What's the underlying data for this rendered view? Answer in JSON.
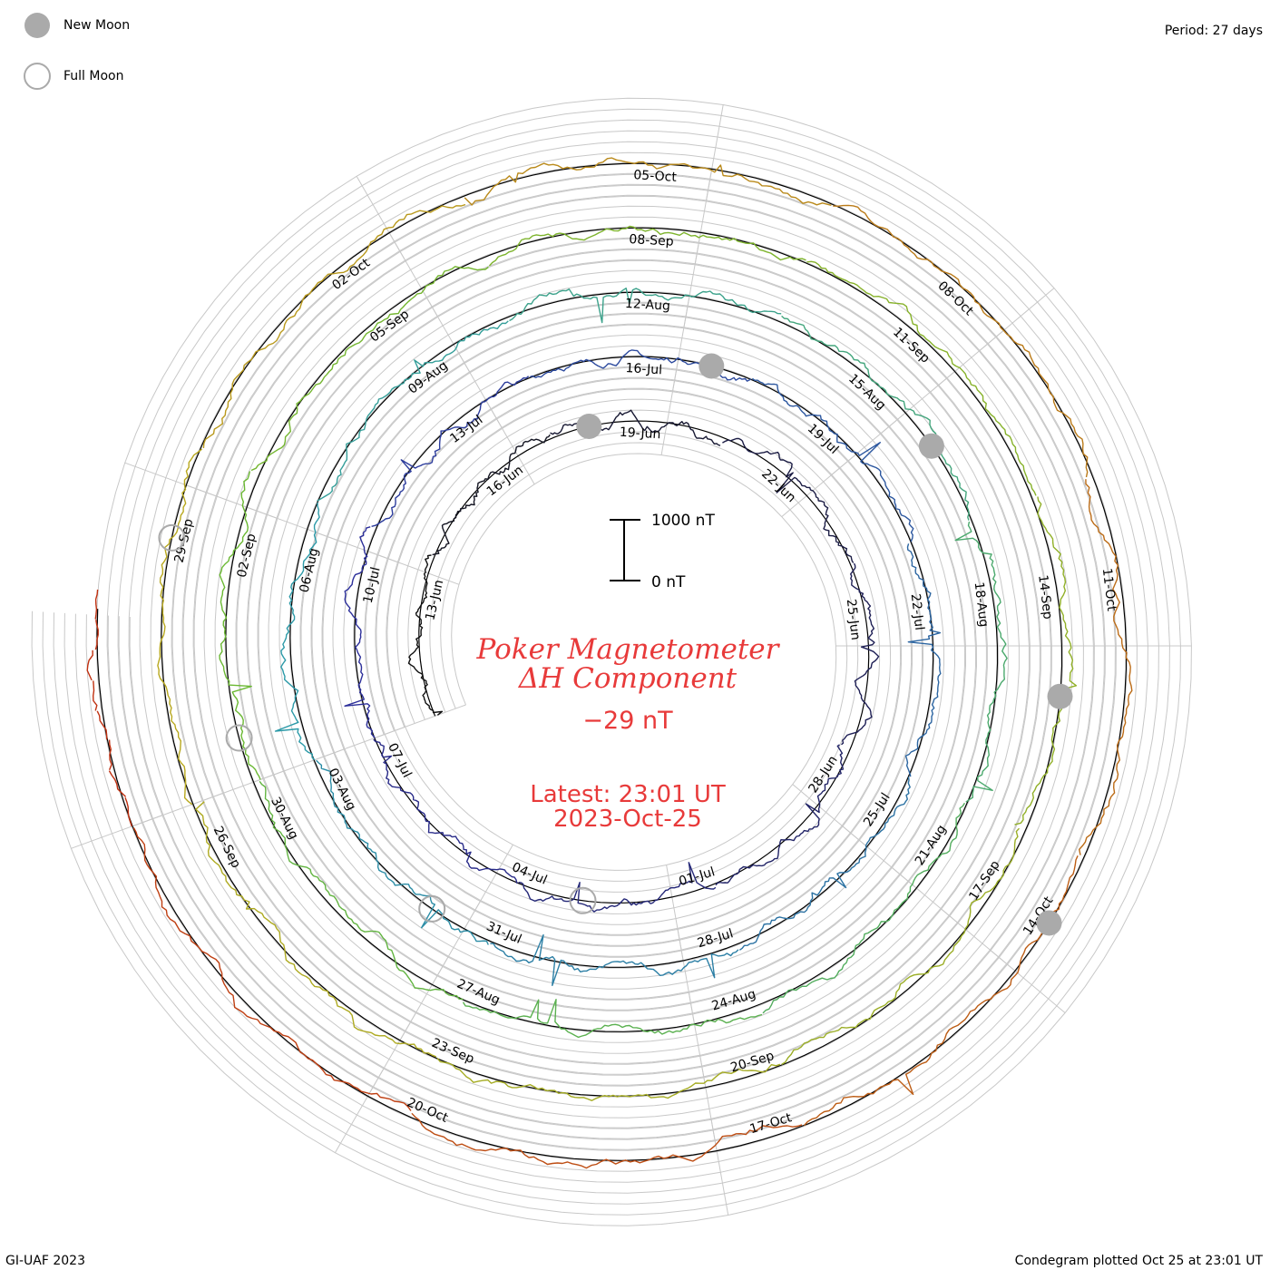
{
  "legend": {
    "new_moon": "New Moon",
    "full_moon": "Full Moon"
  },
  "period_label": "Period: 27 days",
  "footer_left": "GI-UAF 2023",
  "footer_right": "Condegram plotted Oct 25 at 23:01 UT",
  "title_line1": "Poker Magnetometer",
  "title_line2": "ΔH Component",
  "current_value": "−29 nT",
  "latest_time": "Latest: 23:01 UT",
  "latest_date": "2023-Oct-25",
  "scale": {
    "top_label": "1000 nT",
    "bottom_label": "0 nT"
  },
  "colors": {
    "new_moon": "#aaaaaa",
    "full_moon": "#aaaaaa",
    "title": "#e83a3a",
    "grid": "#c8c8c8",
    "baseline": "#000000"
  },
  "chart_data": {
    "type": "line",
    "projection": "spiral condegram (27-day period per revolution)",
    "period_days": 27,
    "start_date": "2023-Jun-11",
    "end_date": "2023-Oct-25",
    "units": "nT",
    "scale_nT": [
      0,
      1000
    ],
    "turns": [
      {
        "start": "11-Jun",
        "color": "#111111"
      },
      {
        "start": "08-Jul",
        "color": "#2c2f9a"
      },
      {
        "start": "04-Aug",
        "color": "#2c9aa8"
      },
      {
        "start": "31-Aug",
        "color": "#6ab832"
      },
      {
        "start": "27-Sep",
        "color": "#b8a81e"
      },
      {
        "start": "24-Oct",
        "color": "#c03010"
      }
    ],
    "date_labels": [
      "13-Jun",
      "16-Jun",
      "19-Jun",
      "22-Jun",
      "25-Jun",
      "28-Jun",
      "01-Jul",
      "04-Jul",
      "07-Jul",
      "10-Jul",
      "13-Jul",
      "16-Jul",
      "19-Jul",
      "22-Jul",
      "25-Jul",
      "28-Jul",
      "31-Jul",
      "03-Aug",
      "06-Aug",
      "09-Aug",
      "12-Aug",
      "15-Aug",
      "18-Aug",
      "21-Aug",
      "24-Aug",
      "27-Aug",
      "30-Aug",
      "02-Sep",
      "05-Sep",
      "08-Sep",
      "11-Sep",
      "14-Sep",
      "17-Sep",
      "20-Sep",
      "23-Sep",
      "26-Sep",
      "29-Sep",
      "02-Oct",
      "05-Oct",
      "08-Oct",
      "11-Oct",
      "14-Oct",
      "17-Oct",
      "20-Oct"
    ],
    "new_moons": [
      "2023-Jun-18",
      "2023-Jul-17",
      "2023-Aug-16",
      "2023-Sep-15",
      "2023-Oct-14"
    ],
    "full_moons": [
      "2023-Jul-03",
      "2023-Aug-01",
      "2023-Aug-31",
      "2023-Sep-29"
    ]
  }
}
